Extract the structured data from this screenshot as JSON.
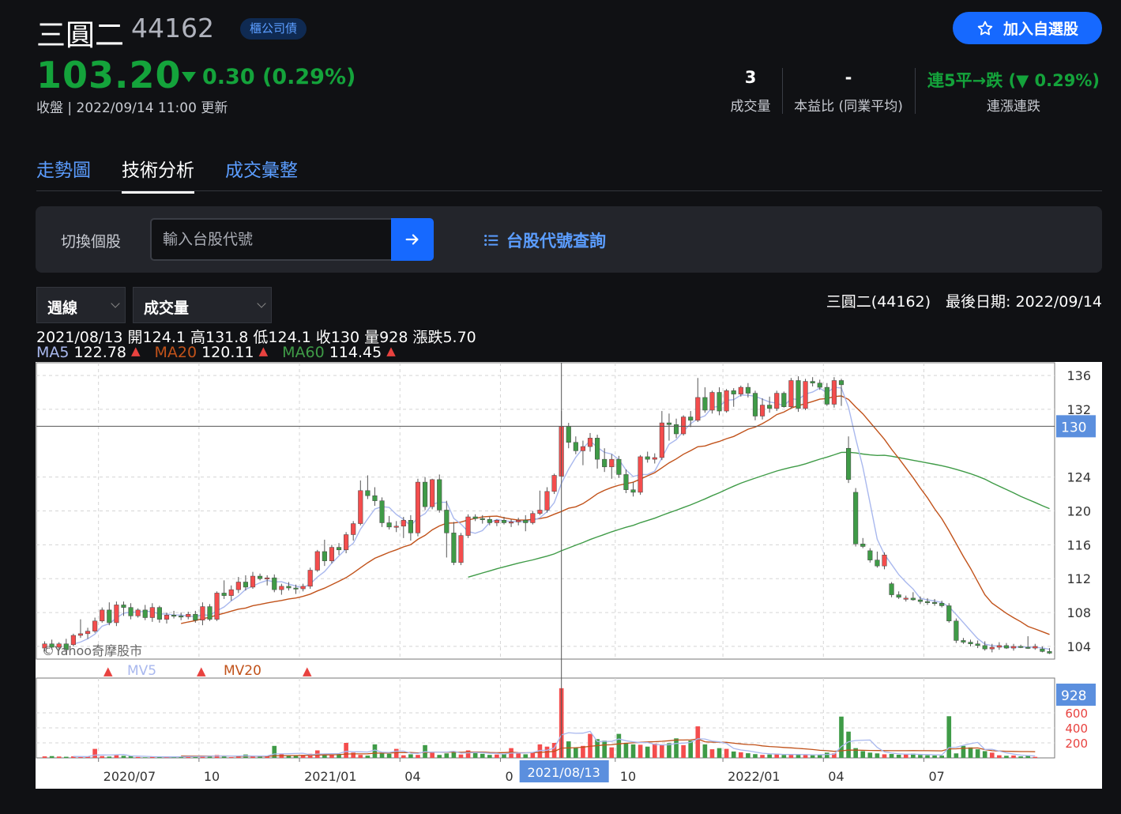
{
  "header": {
    "name": "三圓二",
    "code": "44162",
    "badge": "櫃公司債",
    "watch_label": "加入自選股",
    "price": "103.20",
    "change": "0.30 (0.29%)",
    "update": "收盤 | 2022/09/14 11:00 更新",
    "stats": [
      {
        "value": "3",
        "label": "成交量"
      },
      {
        "value": "-",
        "label": "本益比 (同業平均)"
      },
      {
        "value": "連5平→跌 (▼ 0.29%)",
        "label": "連漲連跌"
      }
    ],
    "colors": {
      "down": "#14a33b",
      "up": "#e8423f",
      "accent": "#1669ff"
    }
  },
  "tabs": [
    {
      "label": "走勢圖"
    },
    {
      "label": "技術分析"
    },
    {
      "label": "成交彙整"
    }
  ],
  "switcher": {
    "label": "切換個股",
    "placeholder": "輸入台股代號",
    "lookup_label": "台股代號查詢"
  },
  "controls": {
    "period": "週線",
    "indicator": "成交量",
    "latest": "三圓二(44162)　最後日期: 2022/09/14"
  },
  "info": {
    "ohlc": "2021/08/13 開124.1 高131.8 低124.1 收130 量928 漲跌5.70",
    "ma5_label": "MA5",
    "ma5_value": "122.78",
    "ma20_label": "MA20",
    "ma20_value": "120.11",
    "ma60_label": "MA60",
    "ma60_value": "114.45"
  },
  "chart_data": {
    "type": "candlestick",
    "price_ticks": [
      104,
      108,
      112,
      116,
      120,
      124,
      132,
      136
    ],
    "price_range": [
      102.5,
      137.5
    ],
    "crosshair_price": "130",
    "crosshair_date": "2021/08/13",
    "watermark": "©Yahoo奇摩股市",
    "volume_ticks": [
      "600",
      "400",
      "200"
    ],
    "volume_range": [
      0,
      1000
    ],
    "volume_label": "928",
    "volume_legend": {
      "mv5": "MV5",
      "mv20": "MV20"
    },
    "x_labels": [
      "2020/07",
      "10",
      "2021/01",
      "04",
      "0",
      "10",
      "2022/01",
      "04",
      "07"
    ],
    "colors": {
      "up": "#f44d4d",
      "down": "#3f9b47",
      "ma5": "#a9b8ee",
      "ma20": "#c1521a",
      "ma60": "#3f9b47"
    },
    "candles": [
      [
        103.8,
        104.6,
        103.4,
        104.3
      ],
      [
        104.3,
        104.8,
        103.6,
        103.9
      ],
      [
        103.9,
        104.5,
        103.5,
        104.3
      ],
      [
        104.3,
        104.9,
        103.2,
        103.6
      ],
      [
        104.2,
        105.5,
        104,
        105.3
      ],
      [
        105.3,
        107.2,
        105,
        105.5
      ],
      [
        105.5,
        106.2,
        104.9,
        105.8
      ],
      [
        105.8,
        107.4,
        105.6,
        107
      ],
      [
        107,
        108.6,
        106.8,
        108.3
      ],
      [
        108.3,
        109.2,
        106.5,
        106.8
      ],
      [
        106.8,
        109.3,
        106.4,
        108.9
      ],
      [
        108.9,
        109.3,
        107.6,
        108.6
      ],
      [
        108.6,
        109.1,
        107.2,
        107.6
      ],
      [
        107.6,
        108.5,
        107.4,
        108.3
      ],
      [
        108.3,
        108.9,
        107.1,
        107.4
      ],
      [
        107.4,
        109.1,
        106.9,
        108.6
      ],
      [
        108.6,
        108.8,
        106.8,
        107.2
      ],
      [
        107.2,
        108,
        106.7,
        107.7
      ],
      [
        107.7,
        108.2,
        107.3,
        107.6
      ],
      [
        107.6,
        108,
        107.1,
        107.5
      ],
      [
        107.5,
        108.1,
        107.2,
        107.8
      ],
      [
        107.8,
        108.2,
        106.8,
        107.1
      ],
      [
        107.1,
        109.2,
        106.5,
        108.7
      ],
      [
        108.7,
        109,
        107,
        107.2
      ],
      [
        107.2,
        110.5,
        107,
        110.3
      ],
      [
        110.3,
        111.8,
        109.6,
        110
      ],
      [
        110,
        111.2,
        109.4,
        110.7
      ],
      [
        110.7,
        112.2,
        110.3,
        111.6
      ],
      [
        111.6,
        112.4,
        110.6,
        111
      ],
      [
        111,
        112.8,
        110.8,
        112.3
      ],
      [
        112.3,
        112.6,
        111.8,
        112
      ],
      [
        112,
        112.4,
        111.2,
        112.1
      ],
      [
        112.1,
        112.5,
        110.4,
        110.7
      ],
      [
        110.7,
        111.4,
        110.1,
        111.1
      ],
      [
        111.1,
        111.6,
        110.6,
        110.9
      ],
      [
        110.9,
        111.3,
        110.2,
        110.8
      ],
      [
        110.8,
        111.4,
        110.5,
        111.1
      ],
      [
        111.1,
        113.3,
        110.8,
        113
      ],
      [
        113,
        115.4,
        112.8,
        115.2
      ],
      [
        115.2,
        116.6,
        113.5,
        114.1
      ],
      [
        114.1,
        116,
        113.8,
        115.7
      ],
      [
        115.7,
        116.2,
        114.8,
        115.4
      ],
      [
        115.4,
        117.5,
        115,
        117.2
      ],
      [
        117.2,
        118.8,
        116.5,
        118.5
      ],
      [
        118.5,
        123.6,
        118.3,
        122.4
      ],
      [
        122.4,
        124.2,
        121.4,
        121.8
      ],
      [
        121.8,
        122.8,
        120.6,
        121.2
      ],
      [
        121.2,
        121.6,
        118.1,
        118.6
      ],
      [
        118.6,
        119.4,
        117.8,
        118.1
      ],
      [
        118.1,
        118.8,
        117.5,
        118.2
      ],
      [
        118.2,
        119.3,
        116.8,
        118.9
      ],
      [
        118.9,
        119.5,
        116.5,
        117.4
      ],
      [
        117.4,
        123.8,
        117,
        123.4
      ],
      [
        123.4,
        124,
        120.1,
        120.5
      ],
      [
        120.5,
        123.8,
        120.2,
        123.7
      ],
      [
        123.7,
        124.3,
        119.8,
        120.1
      ],
      [
        120.1,
        121.2,
        114.5,
        117.4
      ],
      [
        117.4,
        118.7,
        113.6,
        113.9
      ],
      [
        113.9,
        117.4,
        113.6,
        117.1
      ],
      [
        117.1,
        119.6,
        116.8,
        119.3
      ],
      [
        119.3,
        119.6,
        118.8,
        119.1
      ],
      [
        119.1,
        119.5,
        118.5,
        119
      ],
      [
        119,
        119.3,
        118.3,
        118.6
      ],
      [
        118.6,
        119,
        118.2,
        118.9
      ],
      [
        118.9,
        119.3,
        118.4,
        118.6
      ],
      [
        118.6,
        119,
        118.1,
        118.7
      ],
      [
        118.7,
        119.2,
        118.3,
        118.9
      ],
      [
        118.9,
        119.5,
        117.6,
        118.6
      ],
      [
        118.6,
        120,
        118.4,
        119.7
      ],
      [
        119.7,
        122.4,
        119.5,
        120.1
      ],
      [
        120.1,
        122.8,
        119.8,
        122.3
      ],
      [
        122.3,
        124.4,
        122,
        124.2
      ],
      [
        124.1,
        131.8,
        124.1,
        130
      ],
      [
        130,
        130.4,
        127.4,
        128.1
      ],
      [
        128.1,
        128.8,
        126.7,
        127.1
      ],
      [
        127.1,
        128.3,
        125.4,
        127.6
      ],
      [
        127.6,
        129.2,
        127,
        128.6
      ],
      [
        128.6,
        129,
        125,
        126.1
      ],
      [
        126.1,
        127.4,
        124.6,
        125.2
      ],
      [
        125.2,
        126.7,
        123.8,
        126.1
      ],
      [
        126.1,
        126.5,
        123.9,
        124.3
      ],
      [
        124.3,
        124.9,
        122.1,
        122.5
      ],
      [
        122.5,
        123.4,
        121.7,
        122.2
      ],
      [
        122.2,
        126.6,
        121.9,
        126.4
      ],
      [
        126.4,
        127,
        125.7,
        126.1
      ],
      [
        126.1,
        126.8,
        125.6,
        126.3
      ],
      [
        126.3,
        131.8,
        126,
        130.4
      ],
      [
        130.4,
        131.5,
        128.3,
        130.2
      ],
      [
        130.2,
        130.9,
        128.6,
        129.1
      ],
      [
        129.1,
        131.3,
        128.9,
        131.1
      ],
      [
        131.1,
        131.8,
        129.9,
        130.7
      ],
      [
        130.7,
        135.7,
        130.5,
        133.4
      ],
      [
        133.4,
        134.6,
        131.6,
        131.9
      ],
      [
        131.9,
        134.2,
        131.5,
        134
      ],
      [
        134,
        134.6,
        131.3,
        131.8
      ],
      [
        131.8,
        134.4,
        131.6,
        134.2
      ],
      [
        134.2,
        134.5,
        132.3,
        133.8
      ],
      [
        133.8,
        134.8,
        133.5,
        134.6
      ],
      [
        134.6,
        135.1,
        133.4,
        133.9
      ],
      [
        133.9,
        134.2,
        130.7,
        131.2
      ],
      [
        131.2,
        133.3,
        130.8,
        132.5
      ],
      [
        132.5,
        133.5,
        131.6,
        132.1
      ],
      [
        132.1,
        134.2,
        131.8,
        133.9
      ],
      [
        133.9,
        134.1,
        132.2,
        132.3
      ],
      [
        132.3,
        135.7,
        132.1,
        135.4
      ],
      [
        135.4,
        135.9,
        131.7,
        132.1
      ],
      [
        132.1,
        135.6,
        131.9,
        135.3
      ],
      [
        135.3,
        135.8,
        134.7,
        135.1
      ],
      [
        135.1,
        135.5,
        134.3,
        134.6
      ],
      [
        134.6,
        135.1,
        132.4,
        132.6
      ],
      [
        132.6,
        135.8,
        132.2,
        135.4
      ],
      [
        135.4,
        135.6,
        132.4,
        134.9
      ],
      [
        127.4,
        128.8,
        123.3,
        123.7
      ],
      [
        122.2,
        122.7,
        115.8,
        116.1
      ],
      [
        116.1,
        116.8,
        115.6,
        115.8
      ],
      [
        115.3,
        115.6,
        113.9,
        114.2
      ],
      [
        114.2,
        115.2,
        113.3,
        113.5
      ],
      [
        113.5,
        115.1,
        113.1,
        114.8
      ],
      [
        111.4,
        111.6,
        109.8,
        110.1
      ],
      [
        110.1,
        110.5,
        109.6,
        109.8
      ],
      [
        109.6,
        110,
        109.3,
        109.7
      ],
      [
        109.7,
        110.4,
        109.4,
        109.5
      ],
      [
        109.5,
        109.9,
        109,
        109.3
      ],
      [
        109.3,
        109.7,
        108.9,
        109.2
      ],
      [
        109.2,
        109.6,
        108.8,
        109.1
      ],
      [
        109.1,
        109.4,
        108.6,
        108.8
      ],
      [
        108.8,
        109.1,
        106.8,
        107
      ],
      [
        107,
        107.3,
        104.4,
        104.7
      ],
      [
        104.7,
        105,
        104.3,
        104.5
      ],
      [
        104.5,
        104.8,
        104,
        104.3
      ],
      [
        104.3,
        104.7,
        103.8,
        104.1
      ],
      [
        104.1,
        104.6,
        103.5,
        103.7
      ],
      [
        103.7,
        104.3,
        103.3,
        103.9
      ],
      [
        103.9,
        104.5,
        103.6,
        104.1
      ],
      [
        104.1,
        104.4,
        103.7,
        103.8
      ],
      [
        103.8,
        104.3,
        103.5,
        104
      ],
      [
        104,
        104.2,
        103.8,
        103.9
      ],
      [
        103.9,
        105.2,
        103.7,
        103.8
      ],
      [
        103.8,
        104.3,
        103.6,
        104
      ],
      [
        103.7,
        104,
        103.3,
        103.4
      ],
      [
        103.4,
        103.8,
        103.1,
        103.2
      ]
    ],
    "volumes": [
      20,
      24,
      18,
      15,
      20,
      14,
      16,
      120,
      24,
      18,
      35,
      28,
      24,
      12,
      8,
      14,
      20,
      16,
      13,
      18,
      22,
      14,
      30,
      26,
      38,
      20,
      10,
      30,
      45,
      18,
      16,
      24,
      160,
      48,
      30,
      35,
      40,
      55,
      100,
      38,
      45,
      52,
      200,
      70,
      40,
      30,
      180,
      60,
      55,
      120,
      35,
      48,
      40,
      170,
      80,
      40,
      60,
      90,
      45,
      100,
      65,
      55,
      40,
      45,
      50,
      130,
      62,
      48,
      72,
      180,
      150,
      200,
      928,
      220,
      140,
      160,
      320,
      250,
      230,
      140,
      320,
      200,
      180,
      175,
      150,
      190,
      170,
      195,
      260,
      170,
      230,
      420,
      180,
      115,
      130,
      120,
      85,
      75,
      62,
      50,
      40,
      45,
      55,
      40,
      48,
      42,
      38,
      35,
      45,
      70,
      60,
      550,
      350,
      130,
      90,
      70,
      60,
      48,
      52,
      42,
      46,
      58,
      40,
      35,
      32,
      30,
      555,
      60,
      160,
      140,
      115,
      90,
      70,
      35,
      28,
      32,
      20,
      35,
      14
    ]
  }
}
